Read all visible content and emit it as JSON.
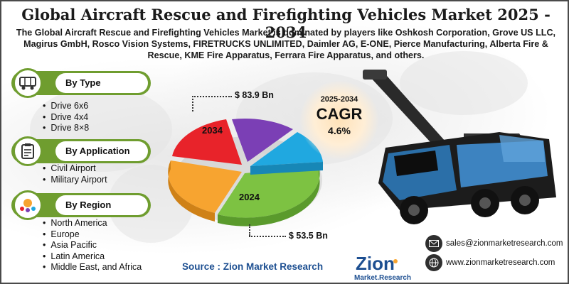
{
  "title": "Global Aircraft Rescue and Firefighting Vehicles Market 2025 - 2034",
  "subtitle": "The Global Aircraft Rescue and Firefighting Vehicles Market is dominated by players like Oshkosh Corporation, Grove US LLC, Magirus GmbH, Rosco Vision Systems, FIRETRUCKS UNLIMITED, Daimler AG, E-ONE, Pierce Manufacturing, Alberta Fire & Rescue, KME Fire Apparatus, Ferrara Fire Apparatus, and others.",
  "segments": {
    "type": {
      "heading": "By Type",
      "icon": "vehicle-icon",
      "items": [
        "Drive 6x6",
        "Drive 4x4",
        "Drive 8×8"
      ]
    },
    "application": {
      "heading": "By Application",
      "icon": "clipboard-icon",
      "items": [
        "Civil Airport",
        "Military Airport"
      ]
    },
    "region": {
      "heading": "By Region",
      "icon": "globe-people-icon",
      "items": [
        "North America",
        "Europe",
        "Asia Pacific",
        "Latin America",
        "Middle East, and Africa"
      ]
    }
  },
  "pie": {
    "label_2034": "2034",
    "label_2024": "2024",
    "value_2034": "$ 83.9 Bn",
    "value_2024": "$ 53.5 Bn",
    "colors": [
      "#e8232a",
      "#7b3fb5",
      "#20a8e0",
      "#7dc242",
      "#f7a430"
    ]
  },
  "cagr": {
    "years": "2025-2034",
    "label": "CAGR",
    "value": "4.6%"
  },
  "source": "Source : Zion Market Research",
  "logo": {
    "line1": "Zion",
    "line2": "Market.Research"
  },
  "contacts": {
    "email": "sales@zionmarketresearch.com",
    "website": "www.zionmarketresearch.com"
  }
}
